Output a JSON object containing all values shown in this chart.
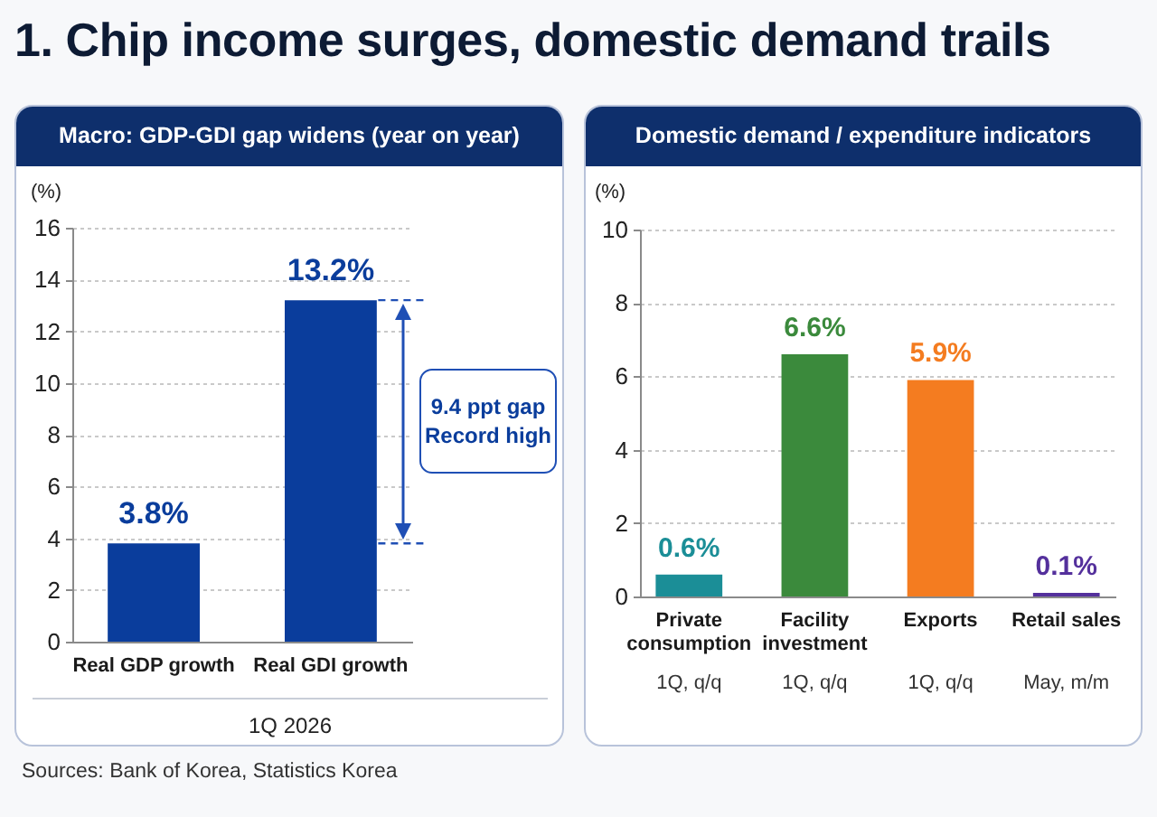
{
  "chart_data": [
    {
      "type": "other",
      "title": "1. Chip income surges, domestic demand trails"
    },
    {
      "type": "bar",
      "title": "Macro: GDP-GDI gap widens (year on year)",
      "xlabel": "1Q 2026",
      "ylabel": "(%)",
      "categories": [
        "Real GDP growth",
        "Real GDI growth"
      ],
      "values": [
        3.8,
        13.2
      ],
      "color": "#0a3d9c",
      "value_labels": [
        "3.8%",
        "13.2%"
      ],
      "ylim": [
        0,
        16
      ],
      "yticks": [
        0,
        2,
        4,
        6,
        8,
        10,
        12,
        14,
        16
      ],
      "grid": "y",
      "ref_lines": [
        {
          "axis": "y",
          "value": 3.8,
          "color": "#1f4fb5",
          "line_style": "dashed"
        },
        {
          "axis": "y",
          "value": 13.2,
          "color": "#1f4fb5",
          "line_style": "dashed"
        }
      ],
      "annotations": [
        "9.4 ppt gap Record high",
        "Sources: Bank of Korea, Statistics Korea"
      ]
    },
    {
      "type": "bar",
      "title": "Domestic demand / expenditure indicators",
      "ylabel": "(%)",
      "categories": [
        "Private consumption",
        "Facility investment",
        "Exports",
        "Retail sales"
      ],
      "values": [
        0.6,
        6.6,
        5.9,
        0.1
      ],
      "colors": [
        "#1b8e97",
        "#3b8a3c",
        "#f47c20",
        "#54309c"
      ],
      "value_labels": [
        "0.6%",
        "6.6%",
        "5.9%",
        "0.1%"
      ],
      "ylim": [
        0,
        10
      ],
      "yticks": [
        0,
        2,
        4,
        6,
        8,
        10
      ],
      "grid": "y",
      "annotations": [
        "1Q, q/q",
        "1Q, q/q",
        "1Q, q/q",
        "May, m/m"
      ]
    }
  ]
}
